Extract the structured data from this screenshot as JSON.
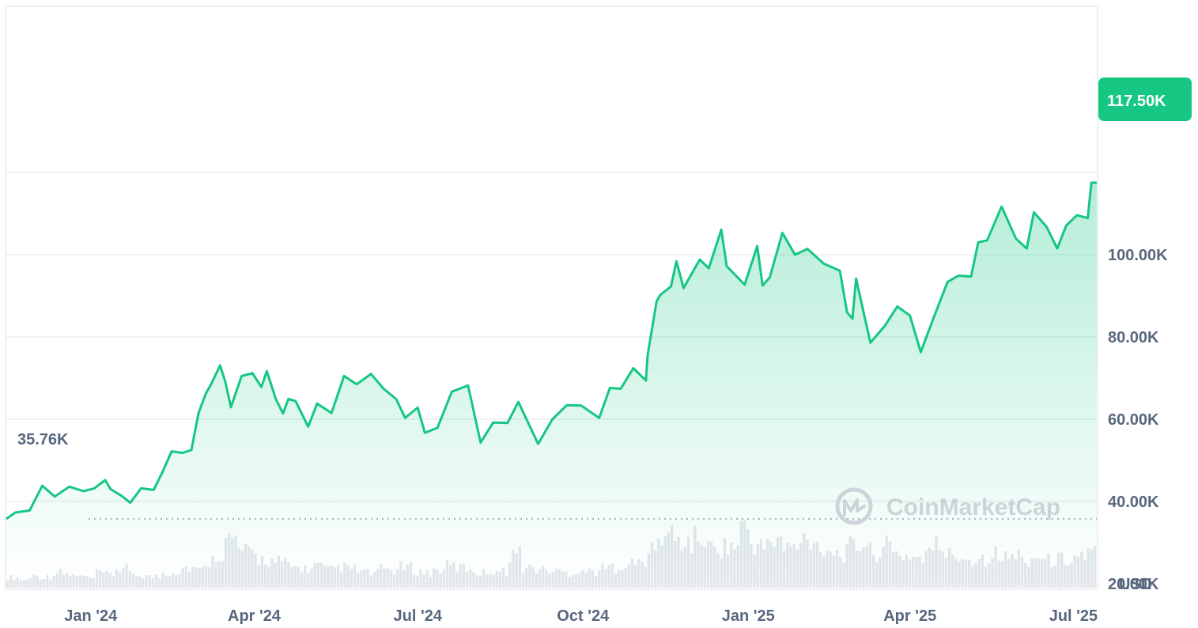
{
  "chart_data": {
    "type": "area",
    "currency_label": "USD",
    "watermark": "CoinMarketCap",
    "start_value_label": "35.76K",
    "current_value_label": "117.50K",
    "start_value": 35760,
    "current_value": 117500,
    "ylim": [
      0,
      140000
    ],
    "y_ticks": [
      {
        "value": 20000,
        "label": "20.00K"
      },
      {
        "value": 40000,
        "label": "40.00K"
      },
      {
        "value": 60000,
        "label": "60.00K"
      },
      {
        "value": 80000,
        "label": "80.00K"
      },
      {
        "value": 100000,
        "label": "100.00K"
      }
    ],
    "x_range": [
      "2023-11-15",
      "2025-07-14"
    ],
    "x_ticks": [
      {
        "date": "2024-01-01",
        "label": "Jan '24"
      },
      {
        "date": "2024-04-01",
        "label": "Apr '24"
      },
      {
        "date": "2024-07-01",
        "label": "Jul '24"
      },
      {
        "date": "2024-10-01",
        "label": "Oct '24"
      },
      {
        "date": "2025-01-01",
        "label": "Jan '25"
      },
      {
        "date": "2025-04-01",
        "label": "Apr '25"
      },
      {
        "date": "2025-07-01",
        "label": "Jul '25"
      }
    ],
    "series": [
      {
        "color": "#16c784",
        "points": [
          [
            "2023-11-15",
            35760
          ],
          [
            "2023-11-20",
            37300
          ],
          [
            "2023-11-28",
            37800
          ],
          [
            "2023-12-05",
            43800
          ],
          [
            "2023-12-12",
            41200
          ],
          [
            "2023-12-20",
            43600
          ],
          [
            "2023-12-28",
            42500
          ],
          [
            "2024-01-03",
            43200
          ],
          [
            "2024-01-09",
            45200
          ],
          [
            "2024-01-12",
            43000
          ],
          [
            "2024-01-18",
            41400
          ],
          [
            "2024-01-23",
            39700
          ],
          [
            "2024-01-29",
            43200
          ],
          [
            "2024-02-05",
            42800
          ],
          [
            "2024-02-10",
            47200
          ],
          [
            "2024-02-15",
            52200
          ],
          [
            "2024-02-21",
            51800
          ],
          [
            "2024-02-26",
            52500
          ],
          [
            "2024-03-01",
            61500
          ],
          [
            "2024-03-05",
            66200
          ],
          [
            "2024-03-08",
            68500
          ],
          [
            "2024-03-13",
            73100
          ],
          [
            "2024-03-16",
            68900
          ],
          [
            "2024-03-19",
            62900
          ],
          [
            "2024-03-25",
            70500
          ],
          [
            "2024-03-31",
            71200
          ],
          [
            "2024-04-05",
            67800
          ],
          [
            "2024-04-08",
            71700
          ],
          [
            "2024-04-13",
            64900
          ],
          [
            "2024-04-17",
            61400
          ],
          [
            "2024-04-20",
            64900
          ],
          [
            "2024-04-24",
            64400
          ],
          [
            "2024-05-01",
            58200
          ],
          [
            "2024-05-06",
            63800
          ],
          [
            "2024-05-14",
            61500
          ],
          [
            "2024-05-21",
            70500
          ],
          [
            "2024-05-28",
            68500
          ],
          [
            "2024-06-05",
            71000
          ],
          [
            "2024-06-12",
            67400
          ],
          [
            "2024-06-19",
            64900
          ],
          [
            "2024-06-24",
            60300
          ],
          [
            "2024-07-01",
            62800
          ],
          [
            "2024-07-05",
            56700
          ],
          [
            "2024-07-12",
            57900
          ],
          [
            "2024-07-20",
            66700
          ],
          [
            "2024-07-29",
            68200
          ],
          [
            "2024-08-05",
            54300
          ],
          [
            "2024-08-12",
            59200
          ],
          [
            "2024-08-20",
            59100
          ],
          [
            "2024-08-26",
            64200
          ],
          [
            "2024-09-06",
            54000
          ],
          [
            "2024-09-14",
            60000
          ],
          [
            "2024-09-22",
            63400
          ],
          [
            "2024-09-30",
            63300
          ],
          [
            "2024-10-10",
            60300
          ],
          [
            "2024-10-16",
            67600
          ],
          [
            "2024-10-22",
            67400
          ],
          [
            "2024-10-29",
            72400
          ],
          [
            "2024-11-05",
            69400
          ],
          [
            "2024-11-06",
            75600
          ],
          [
            "2024-11-11",
            88700
          ],
          [
            "2024-11-13",
            90200
          ],
          [
            "2024-11-19",
            92300
          ],
          [
            "2024-11-22",
            98400
          ],
          [
            "2024-11-26",
            91900
          ],
          [
            "2024-12-05",
            98800
          ],
          [
            "2024-12-10",
            96700
          ],
          [
            "2024-12-17",
            106100
          ],
          [
            "2024-12-20",
            97200
          ],
          [
            "2024-12-30",
            92700
          ],
          [
            "2025-01-06",
            102100
          ],
          [
            "2025-01-09",
            92500
          ],
          [
            "2025-01-13",
            94500
          ],
          [
            "2025-01-20",
            105300
          ],
          [
            "2025-01-27",
            100000
          ],
          [
            "2025-02-03",
            101400
          ],
          [
            "2025-02-12",
            97800
          ],
          [
            "2025-02-21",
            96100
          ],
          [
            "2025-02-25",
            86000
          ],
          [
            "2025-02-28",
            84400
          ],
          [
            "2025-03-02",
            94200
          ],
          [
            "2025-03-10",
            78600
          ],
          [
            "2025-03-18",
            82700
          ],
          [
            "2025-03-25",
            87400
          ],
          [
            "2025-04-01",
            85200
          ],
          [
            "2025-04-07",
            76300
          ],
          [
            "2025-04-14",
            84500
          ],
          [
            "2025-04-22",
            93400
          ],
          [
            "2025-04-28",
            94900
          ],
          [
            "2025-05-05",
            94700
          ],
          [
            "2025-05-09",
            103000
          ],
          [
            "2025-05-14",
            103500
          ],
          [
            "2025-05-22",
            111700
          ],
          [
            "2025-05-30",
            103900
          ],
          [
            "2025-06-05",
            101500
          ],
          [
            "2025-06-09",
            110300
          ],
          [
            "2025-06-16",
            106800
          ],
          [
            "2025-06-22",
            101500
          ],
          [
            "2025-06-27",
            107100
          ],
          [
            "2025-07-03",
            109600
          ],
          [
            "2025-07-09",
            108900
          ],
          [
            "2025-07-11",
            117500
          ],
          [
            "2025-07-14",
            117500
          ]
        ]
      }
    ],
    "volume_series": {
      "color": "#e3e6eb",
      "relative_levels": [
        0.15,
        0.12,
        0.18,
        0.16,
        0.22,
        0.2,
        0.17,
        0.14,
        0.21,
        0.19,
        0.28,
        0.2,
        0.18,
        0.16,
        0.22,
        0.24,
        0.3,
        0.26,
        0.4,
        0.52,
        0.7,
        0.55,
        0.48,
        0.42,
        0.38,
        0.35,
        0.3,
        0.28,
        0.32,
        0.26,
        0.3,
        0.28,
        0.24,
        0.22,
        0.28,
        0.26,
        0.3,
        0.24,
        0.22,
        0.26,
        0.32,
        0.3,
        0.28,
        0.22,
        0.26,
        0.24,
        0.5,
        0.3,
        0.28,
        0.26,
        0.24,
        0.22,
        0.26,
        0.24,
        0.28,
        0.3,
        0.34,
        0.36,
        0.4,
        0.62,
        0.78,
        0.7,
        0.66,
        0.72,
        0.58,
        0.6,
        0.62,
        0.88,
        0.65,
        0.6,
        0.7,
        0.58,
        0.6,
        0.72,
        0.62,
        0.56,
        0.5,
        0.6,
        0.66,
        0.52,
        0.6,
        0.5,
        0.48,
        0.45,
        0.52,
        0.62,
        0.48,
        0.46,
        0.42,
        0.44,
        0.5,
        0.44,
        0.48,
        0.42,
        0.46,
        0.4,
        0.42,
        0.44,
        0.48,
        0.52
      ]
    }
  }
}
